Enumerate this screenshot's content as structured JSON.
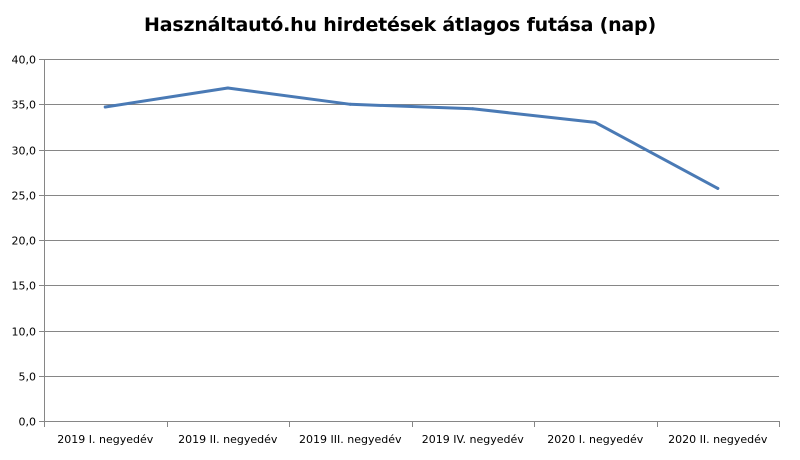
{
  "chart_data": {
    "type": "line",
    "title": "Használtautó.hu hirdetések átlagos futása (nap)",
    "xlabel": "",
    "ylabel": "",
    "categories": [
      "2019 I. negyedév",
      "2019 II. negyedév",
      "2019 III. negyedév",
      "2019 IV. negyedév",
      "2020 I. negyedév",
      "2020 II. negyedév"
    ],
    "series": [
      {
        "values": [
          34.7,
          36.8,
          35.0,
          34.5,
          33.0,
          25.7
        ],
        "color": "#4a7ab5"
      }
    ],
    "ylim": [
      0,
      40
    ],
    "yticks": [
      "0,0",
      "5,0",
      "10,0",
      "15,0",
      "20,0",
      "25,0",
      "30,0",
      "35,0",
      "40,0"
    ],
    "grid": true,
    "legend": "none"
  }
}
